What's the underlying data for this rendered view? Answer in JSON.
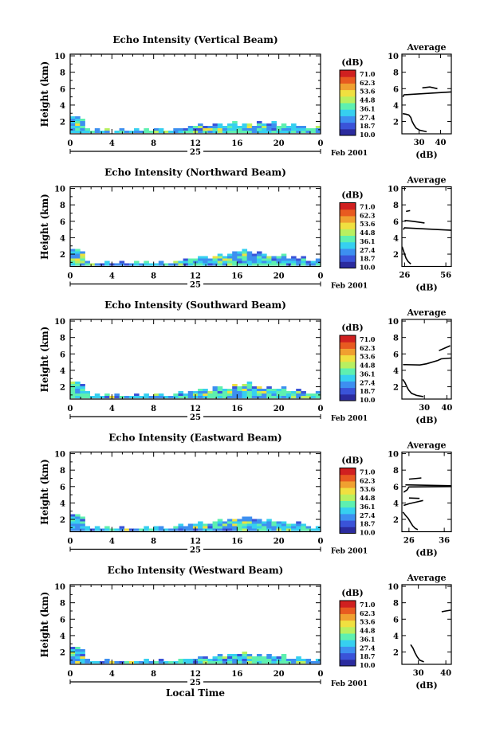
{
  "bottom_label": "Local Time",
  "date_label": "Feb 2001",
  "day_label": "25",
  "colorbar_unit": "(dB)",
  "colorbar_ticks": [
    "71.0",
    "62.3",
    "53.6",
    "44.8",
    "36.1",
    "27.4",
    "18.7",
    "10.0"
  ],
  "colorbar_colors": [
    "#2b2b9e",
    "#3a53d8",
    "#3d8ff0",
    "#36d0f0",
    "#5ef0b0",
    "#b8f060",
    "#f0e040",
    "#f0a030",
    "#e85a20",
    "#d02020"
  ],
  "chart_data": [
    {
      "type": "heatmap",
      "title": "Echo Intensity (Vertical Beam)",
      "ylabel": "Height (km)",
      "xlabel": "",
      "x_ticks": [
        "0",
        "4",
        "8",
        "12",
        "16",
        "20",
        "0"
      ],
      "y_ticks": [
        "10",
        "8",
        "6",
        "4",
        "2"
      ],
      "xlim": [
        0,
        24
      ],
      "ylim": [
        0.5,
        10.2
      ],
      "echo_top_km": [
        2.8,
        2.9,
        2.6,
        1.4,
        1.0,
        1.2,
        0.9,
        1.3,
        0.8,
        1.1,
        1.2,
        0.9,
        1.0,
        1.3,
        1.1,
        1.4,
        1.0,
        1.2,
        1.3,
        1.1,
        0.9,
        1.2,
        1.4,
        1.3,
        1.5,
        1.6,
        1.8,
        1.7,
        1.5,
        1.9,
        2.0,
        1.6,
        1.8,
        2.1,
        1.7,
        2.0,
        1.9,
        1.6,
        2.2,
        1.8,
        2.0,
        2.1,
        1.7,
        1.9,
        1.6,
        1.8,
        1.5,
        1.7,
        1.4,
        1.2,
        1.6
      ],
      "profile": {
        "title": "Average",
        "xlabel": "(dB)",
        "x_ticks": [
          "30",
          "40"
        ],
        "y_ticks": [
          "10",
          "8",
          "6",
          "4",
          "2"
        ],
        "xlim": [
          22,
          45
        ],
        "segments": [
          [
            [
              22.4,
              2.95
            ],
            [
              23.8,
              2.9
            ],
            [
              25.2,
              2.8
            ],
            [
              26.1,
              2.5
            ],
            [
              26.8,
              2.0
            ],
            [
              27.6,
              1.6
            ],
            [
              28.6,
              1.2
            ],
            [
              30.2,
              0.95
            ],
            [
              33.5,
              0.75
            ]
          ],
          [
            [
              22.5,
              5.0
            ],
            [
              23.0,
              5.25
            ],
            [
              44.8,
              5.6
            ]
          ],
          [
            [
              31.5,
              6.1
            ],
            [
              35.0,
              6.2
            ],
            [
              38.5,
              6.0
            ]
          ]
        ]
      }
    },
    {
      "type": "heatmap",
      "title": "Echo Intensity (Northward Beam)",
      "ylabel": "Height (km)",
      "xlabel": "",
      "x_ticks": [
        "0",
        "4",
        "8",
        "12",
        "16",
        "20",
        "0"
      ],
      "y_ticks": [
        "10",
        "8",
        "6",
        "4",
        "2"
      ],
      "xlim": [
        0,
        24
      ],
      "ylim": [
        0.5,
        10.2
      ],
      "echo_top_km": [
        2.7,
        2.9,
        2.5,
        1.3,
        1.0,
        1.1,
        0.9,
        1.2,
        1.0,
        1.1,
        1.3,
        0.9,
        1.0,
        1.2,
        1.1,
        1.3,
        1.0,
        1.1,
        1.2,
        1.0,
        1.1,
        1.2,
        1.4,
        1.5,
        1.6,
        1.5,
        1.9,
        1.8,
        1.6,
        2.0,
        2.3,
        1.9,
        2.2,
        2.6,
        2.4,
        2.7,
        2.5,
        2.2,
        2.4,
        2.1,
        1.9,
        2.0,
        1.8,
        2.2,
        1.7,
        1.9,
        1.6,
        1.8,
        1.4,
        1.2,
        1.5
      ],
      "profile": {
        "title": "Average",
        "xlabel": "(dB)",
        "x_ticks": [
          "26",
          "56"
        ],
        "y_ticks": [
          "10",
          "8",
          "6",
          "4",
          "2"
        ],
        "xlim": [
          24,
          60
        ],
        "segments": [
          [
            [
              24.2,
              2.9
            ],
            [
              25.0,
              2.5
            ],
            [
              26.0,
              2.0
            ],
            [
              27.0,
              1.5
            ],
            [
              28.5,
              1.1
            ],
            [
              30.5,
              0.8
            ]
          ],
          [
            [
              25.0,
              5.0
            ],
            [
              26.0,
              5.2
            ],
            [
              60.0,
              4.9
            ]
          ],
          [
            [
              26.0,
              6.1
            ],
            [
              32.0,
              6.0
            ],
            [
              40.5,
              5.8
            ]
          ],
          [
            [
              27.0,
              7.2
            ],
            [
              30.0,
              7.3
            ]
          ]
        ]
      }
    },
    {
      "type": "heatmap",
      "title": "Echo Intensity (Southward Beam)",
      "ylabel": "Height (km)",
      "xlabel": "",
      "x_ticks": [
        "0",
        "4",
        "8",
        "12",
        "16",
        "20",
        "0"
      ],
      "y_ticks": [
        "10",
        "8",
        "6",
        "4",
        "2"
      ],
      "xlim": [
        0,
        24
      ],
      "ylim": [
        0.5,
        10.2
      ],
      "echo_top_km": [
        2.8,
        2.9,
        2.6,
        1.5,
        1.1,
        1.2,
        0.9,
        1.3,
        1.0,
        1.2,
        1.1,
        1.0,
        0.9,
        1.2,
        1.0,
        1.3,
        1.1,
        1.2,
        1.4,
        1.1,
        1.0,
        1.3,
        1.5,
        1.4,
        1.6,
        1.7,
        1.9,
        1.8,
        1.6,
        2.1,
        2.3,
        1.9,
        2.0,
        2.4,
        2.2,
        2.6,
        2.9,
        2.3,
        2.1,
        1.9,
        2.2,
        2.0,
        1.8,
        2.1,
        1.7,
        1.6,
        1.8,
        1.5,
        1.3,
        1.2,
        1.5
      ],
      "profile": {
        "title": "Average",
        "xlabel": "(dB)",
        "x_ticks": [
          "30",
          "40"
        ],
        "y_ticks": [
          "10",
          "8",
          "6",
          "4",
          "2"
        ],
        "xlim": [
          20,
          42
        ],
        "segments": [
          [
            [
              20.4,
              2.9
            ],
            [
              21.4,
              2.5
            ],
            [
              22.2,
              2.0
            ],
            [
              23.0,
              1.6
            ],
            [
              24.3,
              1.2
            ],
            [
              26.5,
              0.95
            ],
            [
              29.5,
              0.8
            ]
          ],
          [
            [
              20.5,
              4.7
            ],
            [
              28.0,
              4.65
            ],
            [
              31.0,
              4.8
            ],
            [
              36.0,
              5.2
            ],
            [
              37.5,
              5.4
            ],
            [
              42.0,
              5.5
            ]
          ],
          [
            [
              36.5,
              6.4
            ],
            [
              39.0,
              6.7
            ],
            [
              41.5,
              7.0
            ]
          ]
        ]
      }
    },
    {
      "type": "heatmap",
      "title": "Echo Intensity (Eastward Beam)",
      "ylabel": "Height (km)",
      "xlabel": "",
      "x_ticks": [
        "0",
        "4",
        "8",
        "12",
        "16",
        "20",
        "0"
      ],
      "y_ticks": [
        "10",
        "8",
        "6",
        "4",
        "2"
      ],
      "xlim": [
        0,
        24
      ],
      "ylim": [
        0.5,
        10.2
      ],
      "echo_top_km": [
        2.7,
        2.8,
        2.5,
        1.4,
        1.1,
        1.2,
        1.0,
        1.3,
        1.0,
        1.1,
        1.2,
        1.0,
        0.9,
        1.1,
        1.0,
        1.2,
        1.1,
        1.2,
        1.3,
        1.1,
        1.0,
        1.2,
        1.5,
        1.4,
        1.6,
        1.5,
        1.8,
        1.7,
        1.6,
        2.0,
        2.2,
        1.9,
        2.1,
        2.3,
        2.2,
        2.5,
        2.4,
        2.1,
        2.2,
        1.9,
        2.1,
        2.0,
        1.8,
        2.0,
        1.7,
        1.6,
        1.8,
        1.5,
        1.3,
        1.1,
        1.4
      ],
      "profile": {
        "title": "Average",
        "xlabel": "(dB)",
        "x_ticks": [
          "26",
          "36"
        ],
        "y_ticks": [
          "10",
          "8",
          "6",
          "4",
          "2"
        ],
        "xlim": [
          24,
          38
        ],
        "segments": [
          [
            [
              24.3,
              2.9
            ],
            [
              25.0,
              2.5
            ],
            [
              25.8,
              2.1
            ],
            [
              26.5,
              1.6
            ],
            [
              27.1,
              1.2
            ],
            [
              27.8,
              0.9
            ],
            [
              28.5,
              0.75
            ]
          ],
          [
            [
              24.5,
              3.7
            ],
            [
              26.0,
              3.9
            ],
            [
              28.0,
              4.1
            ],
            [
              30.0,
              4.3
            ]
          ],
          [
            [
              26.0,
              4.6
            ],
            [
              29.0,
              4.55
            ]
          ],
          [
            [
              24.5,
              5.3
            ],
            [
              25.5,
              5.6
            ],
            [
              26.0,
              5.95
            ],
            [
              38.0,
              6.0
            ]
          ],
          [
            [
              25.0,
              6.2
            ],
            [
              38.0,
              6.1
            ]
          ],
          [
            [
              26.0,
              6.9
            ],
            [
              28.5,
              7.0
            ],
            [
              29.5,
              7.05
            ]
          ]
        ]
      }
    },
    {
      "type": "heatmap",
      "title": "Echo Intensity (Westward Beam)",
      "ylabel": "Height (km)",
      "xlabel": "Local Time",
      "x_ticks": [
        "0",
        "4",
        "8",
        "12",
        "16",
        "20",
        "0"
      ],
      "y_ticks": [
        "10",
        "8",
        "6",
        "4",
        "2"
      ],
      "xlim": [
        0,
        24
      ],
      "ylim": [
        0.5,
        10.2
      ],
      "echo_top_km": [
        2.7,
        2.8,
        2.5,
        1.3,
        1.0,
        1.1,
        0.9,
        1.2,
        1.0,
        1.1,
        1.0,
        0.9,
        1.0,
        1.1,
        1.0,
        1.2,
        1.0,
        1.1,
        1.2,
        1.0,
        0.9,
        1.1,
        1.3,
        1.2,
        1.4,
        1.3,
        1.6,
        1.5,
        1.4,
        1.7,
        1.9,
        1.6,
        1.8,
        2.0,
        1.8,
        2.1,
        1.9,
        1.7,
        1.9,
        1.6,
        1.8,
        1.7,
        1.5,
        1.8,
        1.4,
        1.3,
        1.6,
        1.4,
        1.2,
        1.1,
        1.3
      ],
      "profile": {
        "title": "Average",
        "xlabel": "(dB)",
        "x_ticks": [
          "30",
          "40"
        ],
        "y_ticks": [
          "10",
          "8",
          "6",
          "4",
          "2"
        ],
        "xlim": [
          24,
          42
        ],
        "segments": [
          [
            [
              27.2,
              2.9
            ],
            [
              28.0,
              2.5
            ],
            [
              28.8,
              1.9
            ],
            [
              29.6,
              1.4
            ],
            [
              30.5,
              1.0
            ],
            [
              32.0,
              0.8
            ]
          ],
          [
            [
              38.5,
              6.9
            ],
            [
              40.0,
              7.0
            ],
            [
              41.8,
              7.1
            ]
          ]
        ]
      }
    }
  ]
}
